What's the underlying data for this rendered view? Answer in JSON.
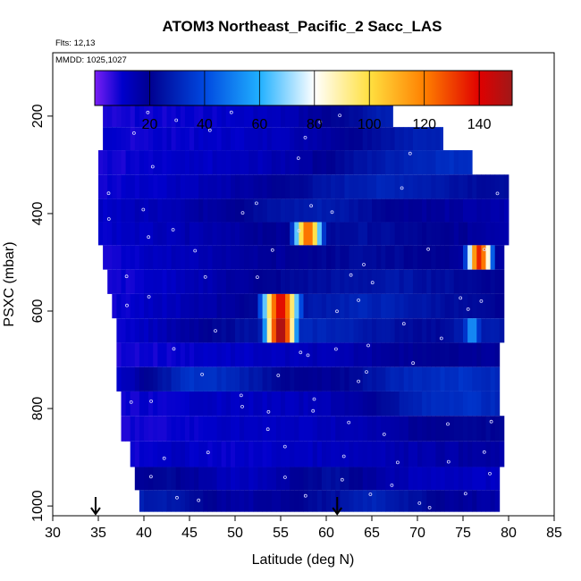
{
  "header": {
    "title": "ATOM3 Northeast_Pacific_2 Sacc_LAS",
    "flights_label": "Flts: 12,13",
    "mmdd_label": "MMDD: 1025,1027"
  },
  "colors": {
    "palette": [
      "#6a00e6",
      "#8a1cff",
      "#0c0cc8",
      "#00008a",
      "#0018c8",
      "#0060f0",
      "#10a8ff",
      "#66ccff",
      "#c8ecff",
      "#ffffff",
      "#ffffb0",
      "#ffe040",
      "#ffb000",
      "#ff7000",
      "#ff2a00",
      "#d80000",
      "#9a0f0f"
    ],
    "legend_stops": [
      0,
      10,
      20,
      40,
      60,
      80,
      100,
      120,
      140,
      152
    ],
    "legend_colors": [
      "#7a1ef5",
      "#0000cc",
      "#000090",
      "#0048e0",
      "#20b0ff",
      "#ffffff",
      "#ffe040",
      "#ff8000",
      "#e00000",
      "#a01818"
    ]
  },
  "chart_data": {
    "type": "heatmap",
    "title": "ATOM3 Northeast_Pacific_2 Sacc_LAS",
    "xlabel": "Latitude (deg N)",
    "ylabel": "PSXC (mbar)",
    "xlim": [
      30,
      85
    ],
    "ylim": [
      1020,
      70
    ],
    "y_reversed": true,
    "x_ticks": [
      "30",
      "35",
      "40",
      "45",
      "50",
      "55",
      "60",
      "65",
      "70",
      "75",
      "80",
      "85"
    ],
    "y_ticks": [
      "200",
      "400",
      "600",
      "800",
      "1000"
    ],
    "colorbar": {
      "min": 0,
      "max": 152,
      "ticks": [
        "20",
        "40",
        "60",
        "80",
        "100",
        "120",
        "140"
      ],
      "orientation": "horizontal",
      "placement": "top-inside"
    },
    "arrows_at_latitude": [
      34.7,
      61.2
    ],
    "bands": [
      {
        "p": 200,
        "lat_start": 35.5,
        "lat_end": 67.3,
        "base": [
          8,
          9,
          9,
          10,
          10,
          11,
          12,
          14,
          18,
          22,
          26,
          30
        ],
        "hot": []
      },
      {
        "p": 245,
        "lat_start": 35.5,
        "lat_end": 72.8,
        "base": [
          9,
          9,
          10,
          10,
          11,
          12,
          14,
          17,
          21,
          25,
          28,
          30
        ],
        "hot": []
      },
      {
        "p": 295,
        "lat_start": 35.0,
        "lat_end": 76.0,
        "base": [
          8,
          9,
          10,
          11,
          12,
          14,
          17,
          22,
          26,
          30,
          32,
          33
        ],
        "hot": []
      },
      {
        "p": 345,
        "lat_start": 35.0,
        "lat_end": 80.0,
        "base": [
          9,
          10,
          12,
          14,
          17,
          21,
          25,
          29,
          30,
          27,
          24,
          22
        ],
        "hot": []
      },
      {
        "p": 395,
        "lat_start": 35.0,
        "lat_end": 80.0,
        "base": [
          11,
          13,
          15,
          18,
          22,
          26,
          28,
          24,
          20,
          18,
          16,
          15
        ],
        "hot": []
      },
      {
        "p": 440,
        "lat_start": 35.0,
        "lat_end": 80.0,
        "base": [
          10,
          12,
          14,
          16,
          18,
          20,
          22,
          24,
          22,
          20,
          18,
          16
        ],
        "hot": [
          {
            "lat": 58.0,
            "w": 1.7,
            "peak": 125
          }
        ]
      },
      {
        "p": 490,
        "lat_start": 35.5,
        "lat_end": 79.5,
        "base": [
          9,
          11,
          13,
          15,
          17,
          19,
          21,
          23,
          22,
          20,
          18,
          17
        ],
        "hot": [
          {
            "lat": 76.8,
            "w": 1.5,
            "peak": 135
          }
        ]
      },
      {
        "p": 540,
        "lat_start": 36.0,
        "lat_end": 79.5,
        "base": [
          8,
          10,
          12,
          16,
          19,
          22,
          24,
          25,
          26,
          24,
          22,
          20
        ],
        "hot": []
      },
      {
        "p": 590,
        "lat_start": 36.5,
        "lat_end": 79.5,
        "base": [
          9,
          11,
          14,
          17,
          21,
          25,
          28,
          30,
          28,
          25,
          22,
          20
        ],
        "hot": [
          {
            "lat": 55.0,
            "w": 2.2,
            "peak": 140
          }
        ]
      },
      {
        "p": 640,
        "lat_start": 37.0,
        "lat_end": 79.5,
        "base": [
          10,
          13,
          17,
          22,
          26,
          30,
          30,
          27,
          24,
          22,
          30,
          25
        ],
        "hot": [
          {
            "lat": 55.0,
            "w": 1.9,
            "peak": 152
          },
          {
            "lat": 76.0,
            "w": 1.2,
            "peak": 55
          }
        ]
      },
      {
        "p": 690,
        "lat_start": 37.0,
        "lat_end": 79.0,
        "base": [
          8,
          9,
          10,
          11,
          12,
          13,
          14,
          16,
          18,
          20,
          20,
          18
        ],
        "hot": []
      },
      {
        "p": 740,
        "lat_start": 37.0,
        "lat_end": 79.0,
        "base": [
          10,
          22,
          34,
          32,
          26,
          20,
          18,
          24,
          30,
          32,
          34,
          30
        ],
        "hot": []
      },
      {
        "p": 790,
        "lat_start": 37.5,
        "lat_end": 79.0,
        "base": [
          9,
          10,
          11,
          12,
          12,
          13,
          14,
          18,
          26,
          32,
          34,
          30
        ],
        "hot": []
      },
      {
        "p": 840,
        "lat_start": 37.5,
        "lat_end": 79.5,
        "base": [
          8,
          9,
          10,
          11,
          12,
          12,
          13,
          15,
          17,
          20,
          22,
          20
        ],
        "hot": []
      },
      {
        "p": 895,
        "lat_start": 38.5,
        "lat_end": 79.5,
        "base": [
          9,
          12,
          11,
          10,
          11,
          12,
          13,
          14,
          15,
          16,
          17,
          16
        ],
        "hot": []
      },
      {
        "p": 945,
        "lat_start": 39.0,
        "lat_end": 79.0,
        "base": [
          18,
          22,
          16,
          12,
          14,
          20,
          24,
          18,
          14,
          12,
          12,
          12
        ],
        "hot": []
      },
      {
        "p": 990,
        "lat_start": 39.5,
        "lat_end": 79.0,
        "base": [
          28,
          26,
          20,
          16,
          18,
          22,
          24,
          30,
          26,
          20,
          18,
          16
        ],
        "hot": []
      }
    ]
  }
}
